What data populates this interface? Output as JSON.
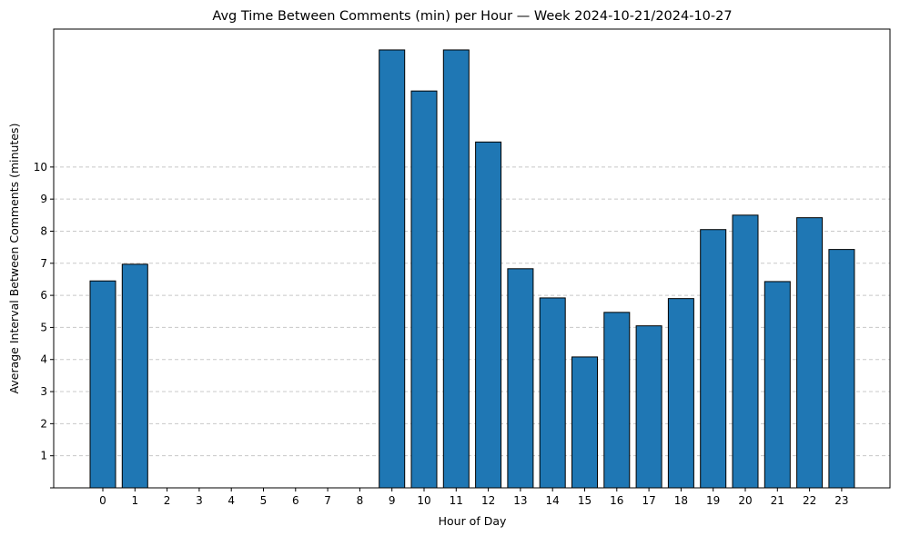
{
  "chart_data": {
    "type": "bar",
    "title": "Avg Time Between Comments (min) per Hour — Week 2024-10-21/2024-10-27",
    "xlabel": "Hour of Day",
    "ylabel": "Average Interval Between Comments (minutes)",
    "categories": [
      "0",
      "1",
      "2",
      "3",
      "4",
      "5",
      "6",
      "7",
      "8",
      "9",
      "10",
      "11",
      "12",
      "13",
      "14",
      "15",
      "16",
      "17",
      "18",
      "19",
      "20",
      "21",
      "22",
      "23"
    ],
    "values": [
      6.45,
      6.97,
      0,
      0,
      0,
      0,
      0,
      0,
      0,
      13.65,
      12.37,
      13.65,
      10.78,
      6.83,
      5.92,
      4.08,
      5.47,
      5.05,
      5.9,
      8.05,
      8.5,
      6.43,
      8.42,
      7.43
    ],
    "yticks": [
      1,
      2,
      3,
      4,
      5,
      6,
      7,
      8,
      9,
      10
    ],
    "ylim": [
      0,
      14.3
    ],
    "grid": "y-dashed",
    "colors": {
      "bar": "#1f77b4",
      "edge": "#000000",
      "grid": "#c8c8c8"
    }
  }
}
